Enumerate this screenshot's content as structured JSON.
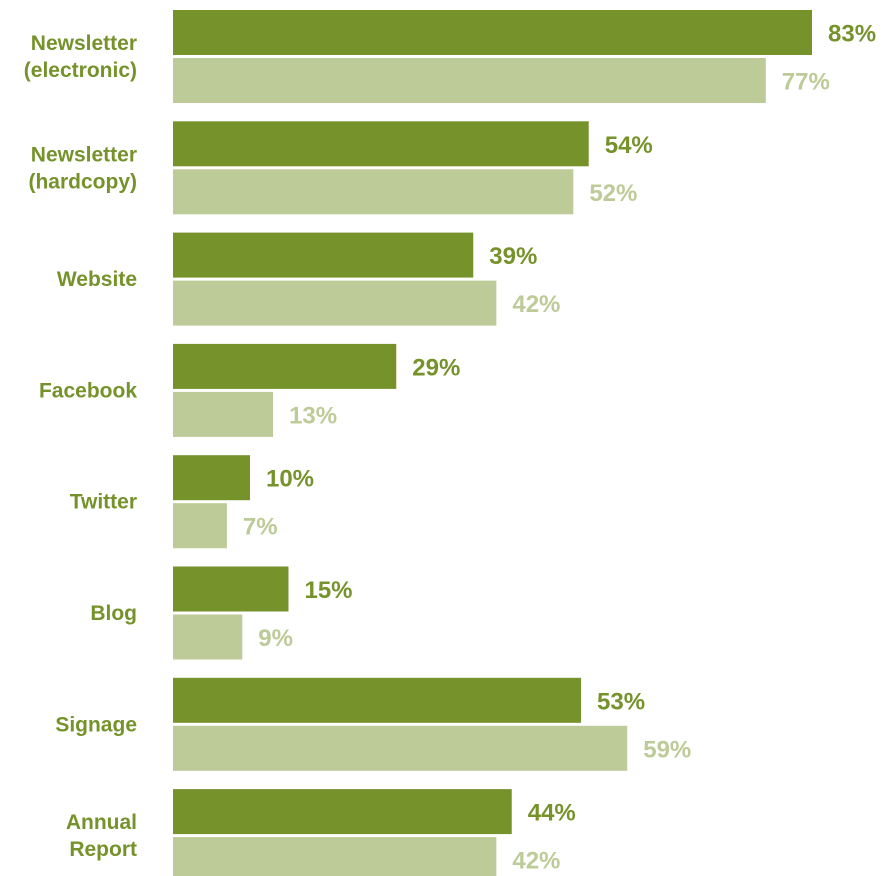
{
  "chart_data": {
    "type": "bar",
    "orientation": "horizontal",
    "categories": [
      [
        "Newsletter",
        "(electronic)"
      ],
      [
        "Newsletter",
        "(hardcopy)"
      ],
      [
        "Website"
      ],
      [
        "Facebook"
      ],
      [
        "Twitter"
      ],
      [
        "Blog"
      ],
      [
        "Signage"
      ],
      [
        "Annual",
        "Report"
      ]
    ],
    "series": [
      {
        "values": [
          83,
          54,
          39,
          29,
          10,
          15,
          53,
          44
        ],
        "labels": [
          "83%",
          "54%",
          "39%",
          "29%",
          "10%",
          "15%",
          "53%",
          "44%"
        ],
        "color": "#76922b",
        "label_color": "#76922b"
      },
      {
        "values": [
          77,
          52,
          42,
          13,
          7,
          9,
          59,
          42
        ],
        "labels": [
          "77%",
          "52%",
          "42%",
          "13%",
          "7%",
          "9%",
          "59%",
          "42%"
        ],
        "color": "#bccb97",
        "label_color": "#bccb97"
      }
    ],
    "xlim": [
      0,
      83
    ],
    "grid": false,
    "legend": "none",
    "category_label_color": "#76922b",
    "title": "",
    "xlabel": "",
    "ylabel": ""
  }
}
